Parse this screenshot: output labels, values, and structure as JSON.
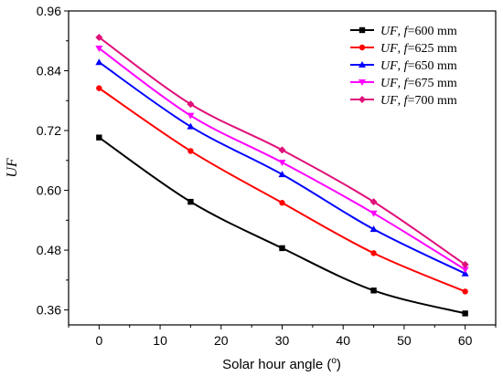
{
  "chart_data": {
    "type": "line",
    "xlabel": "Solar hour angle (",
    "xlabel_sup": "o",
    "xlabel_end": ")",
    "ylabel": "UF",
    "xlim": [
      -5,
      65
    ],
    "ylim": [
      0.33,
      0.96
    ],
    "xticks": [
      0,
      10,
      20,
      30,
      40,
      50,
      60
    ],
    "yticks": [
      0.36,
      0.48,
      0.6,
      0.72,
      0.84,
      0.96
    ],
    "ytick_labels": [
      "0.36",
      "0.48",
      "0.60",
      "0.72",
      "0.84",
      "0.96"
    ],
    "x": [
      0,
      15,
      30,
      45,
      60
    ],
    "legend_position": "top-right",
    "series": [
      {
        "name_italic": "UF",
        "name_mid": ", ",
        "name_f": "f",
        "name_rest": "=600 mm",
        "color": "#000000",
        "marker": "square",
        "values": [
          0.706,
          0.577,
          0.484,
          0.399,
          0.353
        ]
      },
      {
        "name_italic": "UF",
        "name_mid": ", ",
        "name_f": "f",
        "name_rest": "=625 mm",
        "color": "#ff0000",
        "marker": "circle",
        "values": [
          0.805,
          0.679,
          0.575,
          0.474,
          0.397
        ]
      },
      {
        "name_italic": "UF",
        "name_mid": ", ",
        "name_f": "f",
        "name_rest": "=650 mm",
        "color": "#0000ff",
        "marker": "triangle-up",
        "values": [
          0.857,
          0.728,
          0.632,
          0.522,
          0.433
        ]
      },
      {
        "name_italic": "UF",
        "name_mid": ", ",
        "name_f": "f",
        "name_rest": "=675 mm",
        "color": "#ff00ff",
        "marker": "triangle-down",
        "values": [
          0.885,
          0.75,
          0.656,
          0.554,
          0.441
        ]
      },
      {
        "name_italic": "UF",
        "name_mid": ", ",
        "name_f": "f",
        "name_rest": "=700 mm",
        "color": "#e0107a",
        "marker": "diamond",
        "values": [
          0.907,
          0.773,
          0.681,
          0.577,
          0.451
        ]
      }
    ]
  }
}
